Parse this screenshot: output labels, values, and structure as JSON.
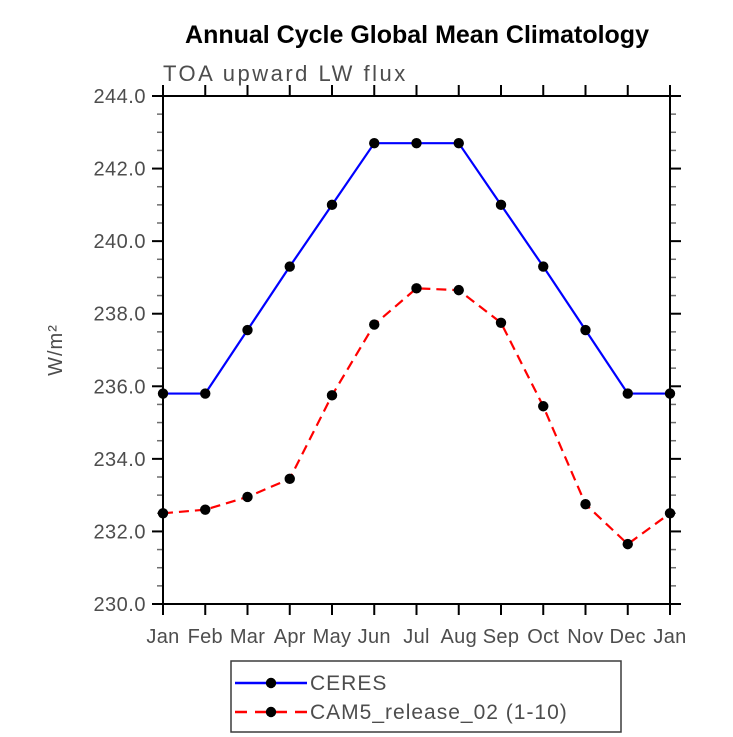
{
  "chart_data": {
    "type": "line",
    "title": "Annual Cycle Global Mean Climatology",
    "subtitle": "TOA upward LW flux",
    "ylabel": "W/m²",
    "x": [
      "Jan",
      "Feb",
      "Mar",
      "Apr",
      "May",
      "Jun",
      "Jul",
      "Aug",
      "Sep",
      "Oct",
      "Nov",
      "Dec",
      "Jan"
    ],
    "ylim": [
      230.0,
      244.0
    ],
    "ytick_major_step": 2.0,
    "ytick_minor_step": 0.5,
    "ytick_labels": [
      "230.0",
      "232.0",
      "234.0",
      "236.0",
      "238.0",
      "240.0",
      "242.0",
      "244.0"
    ],
    "grid": false,
    "legend_position": "bottom-center",
    "series": [
      {
        "name": "CERES",
        "color": "#0000ff",
        "style": "solid",
        "marker": "circle",
        "marker_color": "#000000",
        "values": [
          235.8,
          235.8,
          237.55,
          239.3,
          241.0,
          242.7,
          242.7,
          242.7,
          241.0,
          239.3,
          237.55,
          235.8,
          235.8
        ]
      },
      {
        "name": "CAM5_release_02 (1-10)",
        "color": "#ff0000",
        "style": "dashed",
        "marker": "circle",
        "marker_color": "#000000",
        "values": [
          232.5,
          232.6,
          232.95,
          233.45,
          235.75,
          237.7,
          238.7,
          238.65,
          237.75,
          235.45,
          232.75,
          231.65,
          232.5
        ]
      }
    ]
  }
}
